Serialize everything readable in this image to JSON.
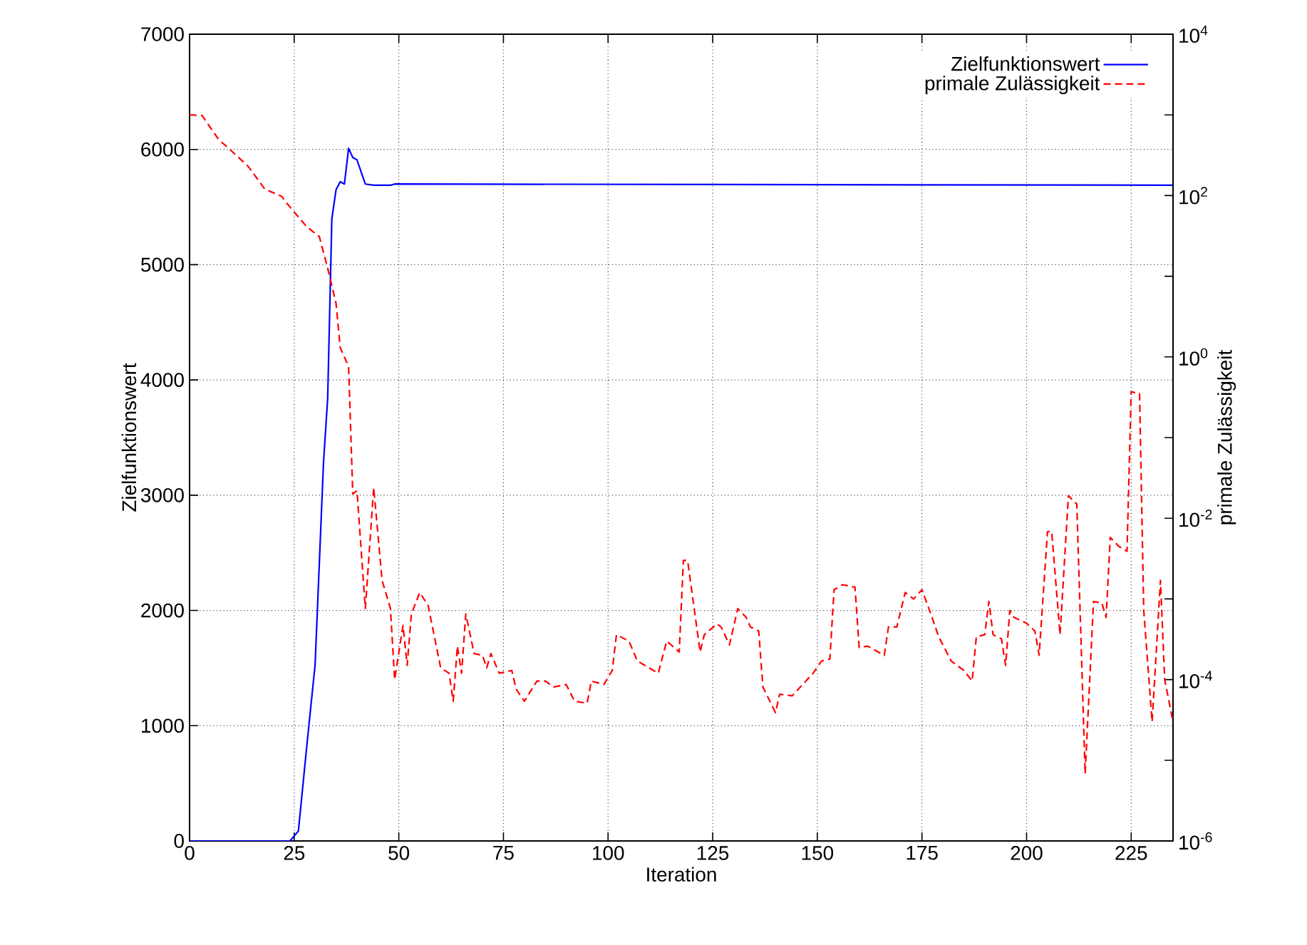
{
  "chart_data": {
    "type": "line",
    "xlabel": "Iteration",
    "ylabel": "Zielfunktionswert",
    "y2label": "primale Zulässigkeit",
    "xlim": [
      0,
      235
    ],
    "xticks": [
      0,
      25,
      50,
      75,
      100,
      125,
      150,
      175,
      200,
      225
    ],
    "ylim": [
      0,
      7000
    ],
    "yticks": [
      0,
      1000,
      2000,
      3000,
      4000,
      5000,
      6000,
      7000
    ],
    "y2lim": [
      1e-06,
      10000
    ],
    "y2ticks": [
      {
        "value": 1e-06,
        "label": "10$^{-6}$"
      },
      {
        "value": 1e-05,
        "label": null
      },
      {
        "value": 0.0001,
        "label": "10$^{-4}$"
      },
      {
        "value": 0.001,
        "label": null
      },
      {
        "value": 0.01,
        "label": "10$^{-2}$"
      },
      {
        "value": 0.1,
        "label": null
      },
      {
        "value": 1,
        "label": "10$^{0}$"
      },
      {
        "value": 10,
        "label": null
      },
      {
        "value": 100,
        "label": "10$^{2}$"
      },
      {
        "value": 1000,
        "label": null
      },
      {
        "value": 10000,
        "label": "10$^{4}$"
      }
    ],
    "log": "y2",
    "grid": true,
    "legend": "top right",
    "series": [
      {
        "name": "Zielfunktionswert",
        "color": "#0000ff",
        "line_style": "solid",
        "x": [
          0,
          24,
          26,
          28,
          30,
          32,
          33,
          34,
          35,
          36,
          37,
          38,
          39,
          40,
          42,
          44,
          48,
          49,
          235
        ],
        "values": [
          0,
          0,
          86,
          820,
          1530,
          3280,
          3840,
          5400,
          5650,
          5720,
          5700,
          6010,
          5930,
          5910,
          5700,
          5690,
          5690,
          5700,
          5690
        ]
      },
      {
        "name": "primale Zulässigkeit",
        "color": "#ff0000",
        "line_style": "dashed",
        "axis": "y2",
        "x": [
          0,
          3,
          7,
          9,
          14,
          18,
          22,
          23,
          28,
          31,
          33,
          35,
          36,
          38,
          39,
          40,
          42,
          44,
          46,
          48,
          49,
          51,
          52,
          53,
          55,
          57,
          60,
          62,
          63,
          64,
          65,
          66,
          68,
          70,
          71,
          72,
          74,
          77,
          78,
          80,
          83,
          85,
          87,
          90,
          92,
          95,
          96,
          99,
          101,
          102,
          105,
          107,
          112,
          114,
          117,
          118,
          119,
          122,
          123,
          126,
          127,
          129,
          131,
          133,
          134,
          136,
          137,
          140,
          141,
          144,
          149,
          151,
          153,
          154,
          156,
          159,
          160,
          162,
          166,
          167,
          169,
          171,
          173,
          175,
          177,
          179,
          182,
          185,
          187,
          188,
          190,
          191,
          192,
          194,
          195,
          196,
          197,
          200,
          202,
          203,
          205,
          206,
          208,
          210,
          212,
          214,
          216,
          218,
          219,
          220,
          222,
          224,
          225,
          227,
          228,
          230,
          232,
          233,
          235
        ],
        "values": [
          1000,
          980,
          490,
          400,
          230,
          120,
          98,
          83,
          41,
          31,
          12.6,
          4.6,
          1.3,
          0.76,
          0.02,
          0.022,
          0.00076,
          0.024,
          0.0017,
          0.00076,
          0.0001,
          0.00047,
          0.00015,
          0.00065,
          0.0012,
          0.00083,
          0.00014,
          0.00012,
          5.4e-05,
          0.00026,
          0.00012,
          0.00065,
          0.00021,
          0.0002,
          0.00014,
          0.00021,
          0.00012,
          0.00013,
          7.7e-05,
          5.4e-05,
          9.6e-05,
          9.6e-05,
          8.1e-05,
          8.7e-05,
          5.4e-05,
          5.1e-05,
          9.6e-05,
          8.7e-05,
          0.00013,
          0.00036,
          0.0003,
          0.00017,
          0.00012,
          0.0003,
          0.00022,
          0.003,
          0.003,
          0.00022,
          0.00036,
          0.00049,
          0.00045,
          0.00027,
          0.00076,
          0.00059,
          0.00045,
          0.0004,
          8.1e-05,
          3.9e-05,
          6.6e-05,
          6.3e-05,
          0.00012,
          0.00017,
          0.00018,
          0.0013,
          0.0015,
          0.0014,
          0.00025,
          0.00026,
          0.0002,
          0.00045,
          0.00045,
          0.0012,
          0.001,
          0.0013,
          0.00068,
          0.00034,
          0.00017,
          0.00013,
          9.6e-05,
          0.00034,
          0.00036,
          0.00093,
          0.00036,
          0.00032,
          0.00015,
          0.00072,
          0.00059,
          0.0005,
          0.0004,
          0.0002,
          0.0068,
          0.0069,
          0.00036,
          0.019,
          0.015,
          6.8e-06,
          0.00093,
          0.00089,
          0.00059,
          0.0058,
          0.0045,
          0.0039,
          0.37,
          0.35,
          0.00072,
          3e-05,
          0.0017,
          0.0001,
          3e-05
        ]
      }
    ]
  }
}
